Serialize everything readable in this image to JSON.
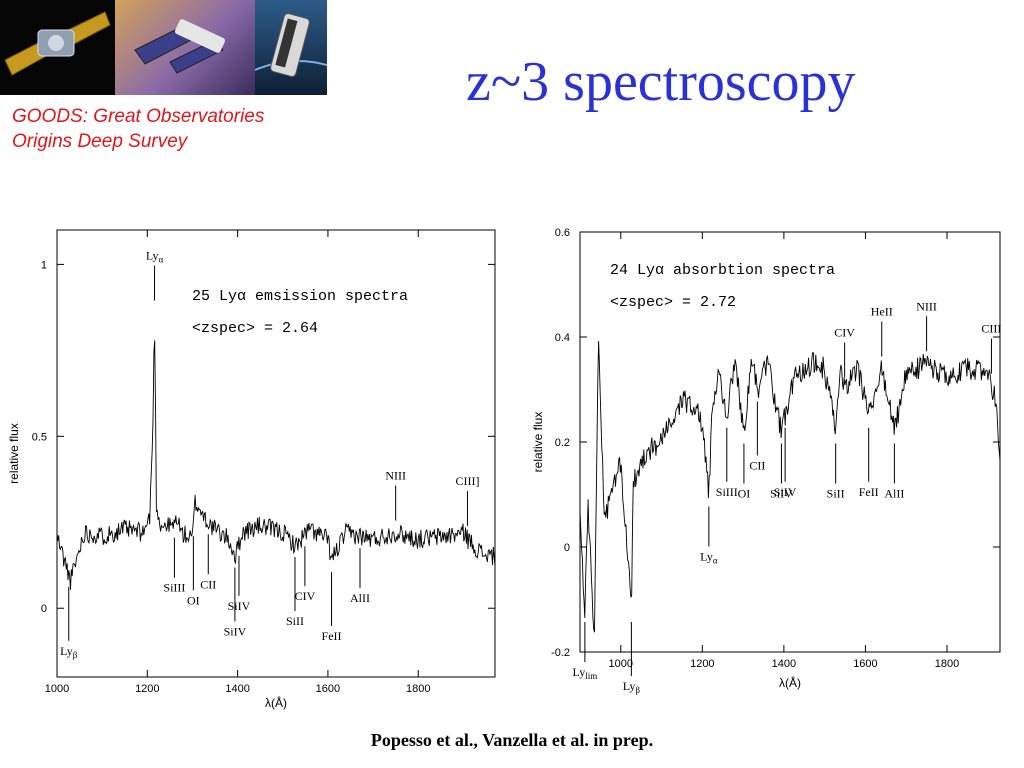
{
  "slide": {
    "title": "z~3 spectroscopy",
    "goods_line1": "GOODS: Great Observatories",
    "goods_line2": "Origins Deep Survey",
    "credit": "Popesso et al., Vanzella et al. in prep."
  },
  "colors": {
    "title": "#2a32d6",
    "goods": "#e0161c"
  },
  "chart_data": [
    {
      "type": "line",
      "title": "25 Lyα emsission spectra",
      "subtitle": "<zspec> = 2.64",
      "xlabel": "λ(Å)",
      "ylabel": "relative flux",
      "xlim": [
        1000,
        1970
      ],
      "ylim": [
        -0.2,
        1.1
      ],
      "xticks": [
        1000,
        1200,
        1400,
        1600,
        1800
      ],
      "yticks": [
        0,
        0.5,
        1
      ],
      "ytick_labels": [
        "0",
        "0.5",
        "1"
      ],
      "x": [
        1000,
        1030,
        1060,
        1100,
        1150,
        1190,
        1205,
        1212,
        1216,
        1220,
        1230,
        1260,
        1265,
        1275,
        1300,
        1305,
        1340,
        1380,
        1395,
        1410,
        1450,
        1500,
        1530,
        1545,
        1560,
        1600,
        1608,
        1640,
        1670,
        1700,
        1750,
        1800,
        1860,
        1905,
        1910,
        1940,
        1970
      ],
      "y": [
        0.21,
        0.08,
        0.22,
        0.21,
        0.23,
        0.22,
        0.26,
        0.5,
        0.86,
        0.3,
        0.24,
        0.24,
        0.27,
        0.22,
        0.2,
        0.31,
        0.24,
        0.2,
        0.15,
        0.22,
        0.24,
        0.22,
        0.18,
        0.21,
        0.23,
        0.2,
        0.14,
        0.22,
        0.21,
        0.2,
        0.22,
        0.2,
        0.21,
        0.22,
        0.2,
        0.16,
        0.15
      ],
      "lines": [
        {
          "label": "Lyα",
          "sub": "α",
          "x": 1216,
          "side": "above"
        },
        {
          "label": "Lyβ",
          "sub": "β",
          "x": 1026,
          "side": "below"
        },
        {
          "label": "SiIII",
          "x": 1260,
          "side": "below"
        },
        {
          "label": "OI",
          "x": 1302,
          "side": "below"
        },
        {
          "label": "CII",
          "x": 1335,
          "side": "below"
        },
        {
          "label": "SiIV",
          "x": 1394,
          "side": "below"
        },
        {
          "label": "SiIV",
          "x": 1403,
          "side": "below"
        },
        {
          "label": "SiII",
          "x": 1527,
          "side": "below"
        },
        {
          "label": "CIV",
          "x": 1549,
          "side": "below"
        },
        {
          "label": "FeII",
          "x": 1608,
          "side": "below"
        },
        {
          "label": "AlII",
          "x": 1671,
          "side": "below"
        },
        {
          "label": "NIII",
          "x": 1750,
          "side": "above"
        },
        {
          "label": "CIII]",
          "x": 1909,
          "side": "above"
        }
      ]
    },
    {
      "type": "line",
      "title": "24 Lyα absorbtion spectra",
      "subtitle": "<zspec> = 2.72",
      "xlabel": "λ(Å)",
      "ylabel": "relative flux",
      "xlim": [
        900,
        1930
      ],
      "ylim": [
        -0.2,
        0.6
      ],
      "xticks": [
        1000,
        1200,
        1400,
        1600,
        1800
      ],
      "yticks": [
        -0.2,
        0,
        0.2,
        0.4,
        0.6
      ],
      "ytick_labels": [
        "-0.2",
        "0",
        "0.2",
        "0.4",
        "0.6"
      ],
      "x": [
        900,
        912,
        920,
        935,
        945,
        960,
        990,
        1000,
        1026,
        1030,
        1060,
        1100,
        1150,
        1190,
        1205,
        1216,
        1225,
        1240,
        1260,
        1280,
        1302,
        1320,
        1335,
        1360,
        1394,
        1403,
        1430,
        1470,
        1500,
        1527,
        1540,
        1549,
        1580,
        1608,
        1640,
        1671,
        1700,
        1750,
        1800,
        1850,
        1900,
        1920,
        1930
      ],
      "y": [
        0.05,
        -0.12,
        0.08,
        -0.18,
        0.4,
        0.05,
        0.14,
        0.16,
        -0.12,
        0.12,
        0.18,
        0.2,
        0.28,
        0.26,
        0.2,
        0.1,
        0.28,
        0.33,
        0.25,
        0.35,
        0.22,
        0.36,
        0.3,
        0.35,
        0.22,
        0.25,
        0.33,
        0.35,
        0.34,
        0.22,
        0.34,
        0.3,
        0.34,
        0.25,
        0.34,
        0.22,
        0.33,
        0.35,
        0.32,
        0.34,
        0.33,
        0.28,
        0.16
      ],
      "lines": [
        {
          "label": "Lyα",
          "sub": "α",
          "x": 1216,
          "side": "below"
        },
        {
          "label": "Lyβ",
          "sub": "β",
          "x": 1026,
          "side": "below"
        },
        {
          "label": "Lylim",
          "sub": "lim",
          "x": 912,
          "side": "below"
        },
        {
          "label": "SiIII",
          "x": 1260,
          "side": "below"
        },
        {
          "label": "OI",
          "x": 1302,
          "side": "below"
        },
        {
          "label": "CII",
          "x": 1335,
          "side": "below"
        },
        {
          "label": "SiIV",
          "x": 1394,
          "side": "below"
        },
        {
          "label": "SiIV",
          "x": 1403,
          "side": "below"
        },
        {
          "label": "SiII",
          "x": 1527,
          "side": "below"
        },
        {
          "label": "FeII",
          "x": 1608,
          "side": "below"
        },
        {
          "label": "AlII",
          "x": 1671,
          "side": "below"
        },
        {
          "label": "CIV",
          "x": 1549,
          "side": "above"
        },
        {
          "label": "HeII",
          "x": 1640,
          "side": "above"
        },
        {
          "label": "NIII",
          "x": 1750,
          "side": "above"
        },
        {
          "label": "CIII",
          "x": 1909,
          "side": "above"
        }
      ]
    }
  ]
}
